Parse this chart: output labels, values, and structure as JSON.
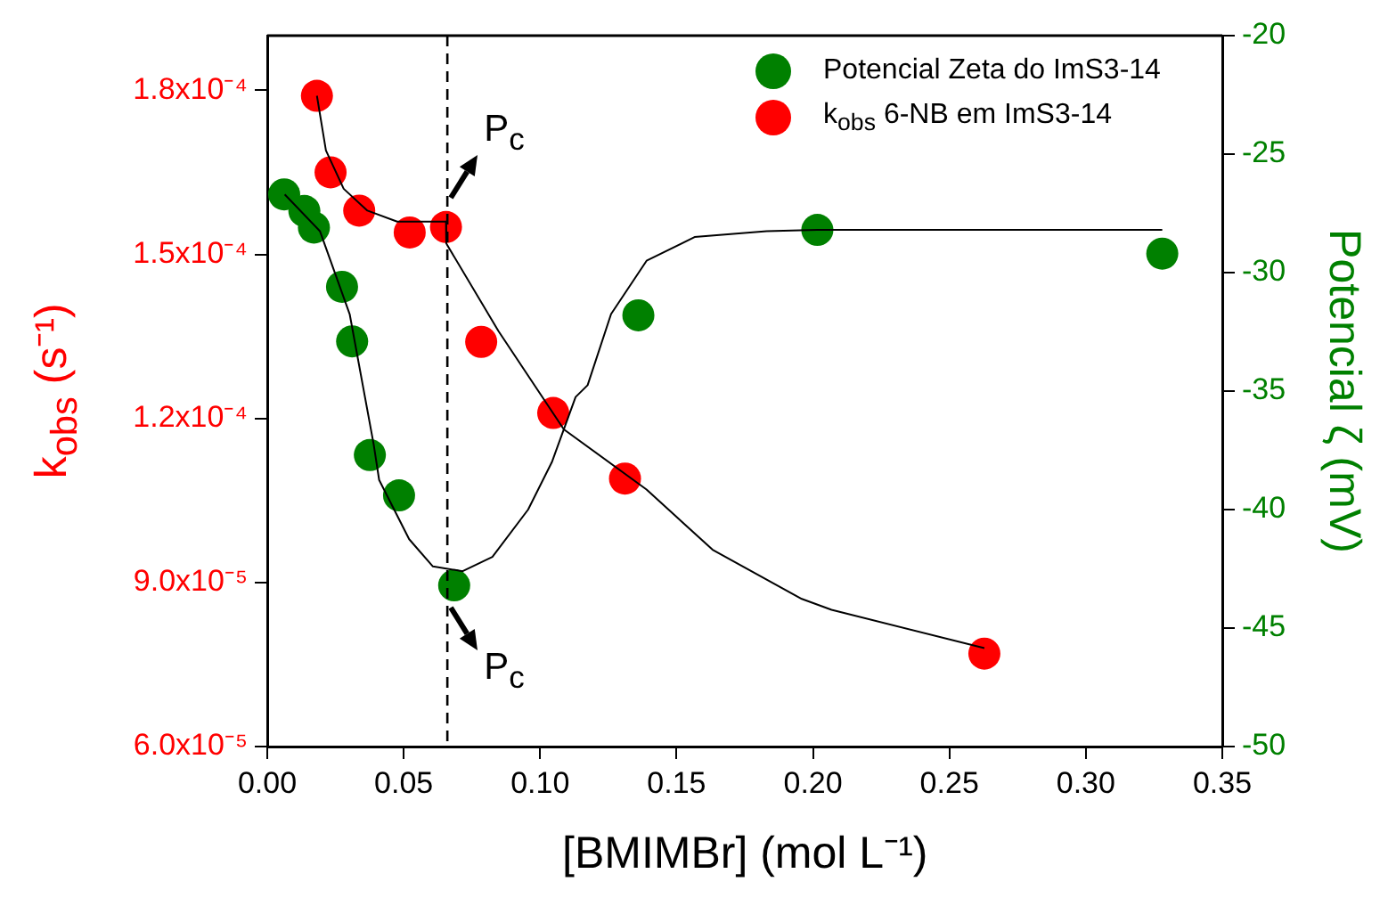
{
  "chart_data": {
    "type": "scatter",
    "xlabel": "[BMIMBr] (mol L⁻¹)",
    "ylabel": "k$_{obs}$ (s⁻¹)",
    "y2label": "Potencial ζ (mV)",
    "xlim": [
      0,
      0.35
    ],
    "xticks": [
      {
        "value": 0,
        "label": "0.00"
      },
      {
        "value": 0.05,
        "label": "0.05"
      },
      {
        "value": 0.1,
        "label": "0.10"
      },
      {
        "value": 0.15,
        "label": "0.15"
      },
      {
        "value": 0.2,
        "label": "0.20"
      },
      {
        "value": 0.25,
        "label": "0.25"
      },
      {
        "value": 0.3,
        "label": "0.30"
      },
      {
        "value": 0.35,
        "label": "0.35"
      }
    ],
    "ylim": [
      6e-05,
      0.00019
    ],
    "yticks": [
      {
        "value": 6e-05,
        "label": "6.0x10⁻⁵"
      },
      {
        "value": 9e-05,
        "label": "9.0x10⁻⁵"
      },
      {
        "value": 0.00012,
        "label": "1.2x10⁻⁴"
      },
      {
        "value": 0.00015,
        "label": "1.5x10⁻⁴"
      },
      {
        "value": 0.00018,
        "label": "1.8x10⁻⁴"
      }
    ],
    "y2lim": [
      -50,
      -20
    ],
    "y2ticks": [
      -50,
      -45,
      -40,
      -35,
      -30,
      -25,
      -20
    ],
    "grid": false,
    "legend": "top right",
    "marker": "circle",
    "series": [
      {
        "name": "Potencial Zeta do ImS3-14",
        "color": "#008000",
        "axis": "y2",
        "x": [
          0.0062,
          0.0136,
          0.0171,
          0.0274,
          0.0311,
          0.0376,
          0.0483,
          0.0685,
          0.136,
          0.2016,
          0.328
        ],
        "values": [
          -26.7,
          -27.4,
          -28.1,
          -30.6,
          -32.9,
          -37.7,
          -39.4,
          -43.2,
          -31.8,
          -28.2,
          -29.2
        ]
      },
      {
        "name": "k$_{obs}$ 6-NB em ImS3-14",
        "color": "#ff0000",
        "x": [
          0.0182,
          0.0232,
          0.0337,
          0.0522,
          0.0655,
          0.0784,
          0.1048,
          0.1311,
          0.2628
        ],
        "values": [
          0.000179,
          0.000165,
          0.000158,
          0.000154,
          0.000155,
          0.000134,
          0.000121,
          0.000109,
          7.7e-05
        ]
      },
      {
        "type": "line",
        "color": "#000000",
        "axis": "y2",
        "marker": "none",
        "x": [
          0.0064,
          0.0193,
          0.0302,
          0.039,
          0.041,
          0.052,
          0.0607,
          0.0716,
          0.0825,
          0.0956,
          0.1043,
          0.113,
          0.1174,
          0.126,
          0.139,
          0.1566,
          0.183,
          0.2016,
          0.328
        ],
        "values": [
          -26.7,
          -28.25,
          -31.75,
          -37.25,
          -38.75,
          -41.25,
          -42.4,
          -42.6,
          -42.0,
          -40.0,
          -38.0,
          -35.25,
          -34.75,
          -31.75,
          -29.5,
          -28.5,
          -28.25,
          -28.2,
          -28.2
        ]
      },
      {
        "type": "line",
        "color": "#000000",
        "marker": "none",
        "x": [
          0.0182,
          0.0215,
          0.028,
          0.0367,
          0.0476,
          0.0655,
          0.0656,
          0.0847,
          0.1087,
          0.139,
          0.1632,
          0.1959,
          0.2068,
          0.2628
        ],
        "values": [
          0.000179,
          0.000169,
          0.000162,
          0.000158,
          0.000156,
          0.000156,
          0.000152,
          0.000136,
          0.000118,
          0.000107,
          9.6e-05,
          8.7e-05,
          8.5e-05,
          7.8e-05
        ]
      }
    ],
    "ref_lines": [
      {
        "axis": "x",
        "value": 0.066,
        "color": "#000000",
        "line_style": "dashed"
      }
    ],
    "annotations": [
      "P$_{c}$",
      "P$_{c}$"
    ]
  }
}
